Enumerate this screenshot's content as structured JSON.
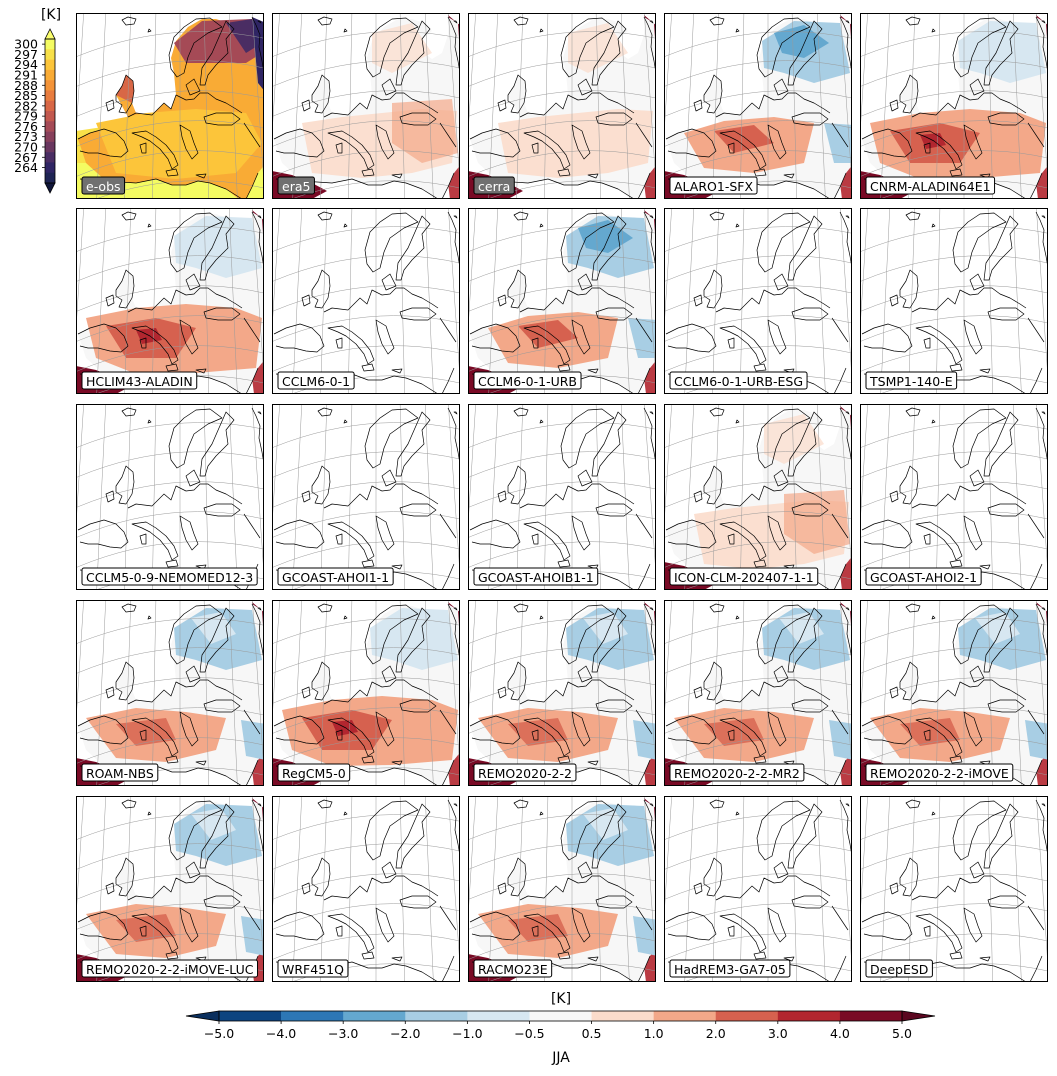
{
  "figure": {
    "season_label": "JJA",
    "unit_top": "[K]",
    "unit_bottom": "[K]"
  },
  "panels": [
    {
      "label": "e-obs",
      "style": "reference",
      "kind": "absolute"
    },
    {
      "label": "era5",
      "style": "reference",
      "kind": "bias_a"
    },
    {
      "label": "cerra",
      "style": "reference",
      "kind": "bias_b"
    },
    {
      "label": "ALARO1-SFX",
      "style": "model",
      "kind": "bias_cold"
    },
    {
      "label": "CNRM-ALADIN64E1",
      "style": "model",
      "kind": "bias_warm"
    },
    {
      "label": "HCLIM43-ALADIN",
      "style": "model",
      "kind": "bias_warm"
    },
    {
      "label": "CCLM6-0-1",
      "style": "model",
      "kind": "empty"
    },
    {
      "label": "CCLM6-0-1-URB",
      "style": "model",
      "kind": "bias_cold"
    },
    {
      "label": "CCLM6-0-1-URB-ESG",
      "style": "model",
      "kind": "empty"
    },
    {
      "label": "TSMP1-140-E",
      "style": "model",
      "kind": "empty"
    },
    {
      "label": "CCLM5-0-9-NEMOMED12-3",
      "style": "model",
      "kind": "empty"
    },
    {
      "label": "GCOAST-AHOI1-1",
      "style": "model",
      "kind": "empty"
    },
    {
      "label": "GCOAST-AHOIB1-1",
      "style": "model",
      "kind": "empty"
    },
    {
      "label": "ICON-CLM-202407-1-1",
      "style": "model",
      "kind": "bias_a"
    },
    {
      "label": "GCOAST-AHOI2-1",
      "style": "model",
      "kind": "empty"
    },
    {
      "label": "ROAM-NBS",
      "style": "model",
      "kind": "bias_mixed"
    },
    {
      "label": "RegCM5-0",
      "style": "model",
      "kind": "bias_warm"
    },
    {
      "label": "REMO2020-2-2",
      "style": "model",
      "kind": "bias_mixed"
    },
    {
      "label": "REMO2020-2-2-MR2",
      "style": "model",
      "kind": "bias_mixed"
    },
    {
      "label": "REMO2020-2-2-iMOVE",
      "style": "model",
      "kind": "bias_mixed"
    },
    {
      "label": "REMO2020-2-2-iMOVE-LUC",
      "style": "model",
      "kind": "bias_mixed"
    },
    {
      "label": "WRF451Q",
      "style": "model",
      "kind": "empty"
    },
    {
      "label": "RACMO23E",
      "style": "model",
      "kind": "bias_mixed"
    },
    {
      "label": "HadREM3-GA7-05",
      "style": "model",
      "kind": "empty"
    },
    {
      "label": "DeepESD",
      "style": "model",
      "kind": "empty"
    }
  ],
  "colorbar_absolute": {
    "ticks": [
      "300",
      "297",
      "294",
      "291",
      "288",
      "285",
      "282",
      "279",
      "276",
      "273",
      "270",
      "267",
      "264"
    ],
    "colors": [
      "#f4fb62",
      "#f8e049",
      "#fcc53a",
      "#f9ab35",
      "#f39338",
      "#e87c3e",
      "#d86746",
      "#c2584e",
      "#a54a56",
      "#873f5b",
      "#69365f",
      "#4a2d63",
      "#2f2564",
      "#1e2454"
    ],
    "extend": "both"
  },
  "colorbar_bias": {
    "ticks": [
      "−5.0",
      "−4.0",
      "−3.0",
      "−2.0",
      "−1.0",
      "−0.5",
      "0.5",
      "1.0",
      "2.0",
      "3.0",
      "4.0",
      "5.0"
    ],
    "colors": [
      "#0d4480",
      "#2d77b5",
      "#64a8cf",
      "#a8cee4",
      "#d7e7f1",
      "#f7f7f7",
      "#fbdccb",
      "#f3a889",
      "#d6614f",
      "#b2262f",
      "#790a25"
    ],
    "under_color": "#0a2f5e",
    "over_color": "#5b0720",
    "extend": "both"
  }
}
